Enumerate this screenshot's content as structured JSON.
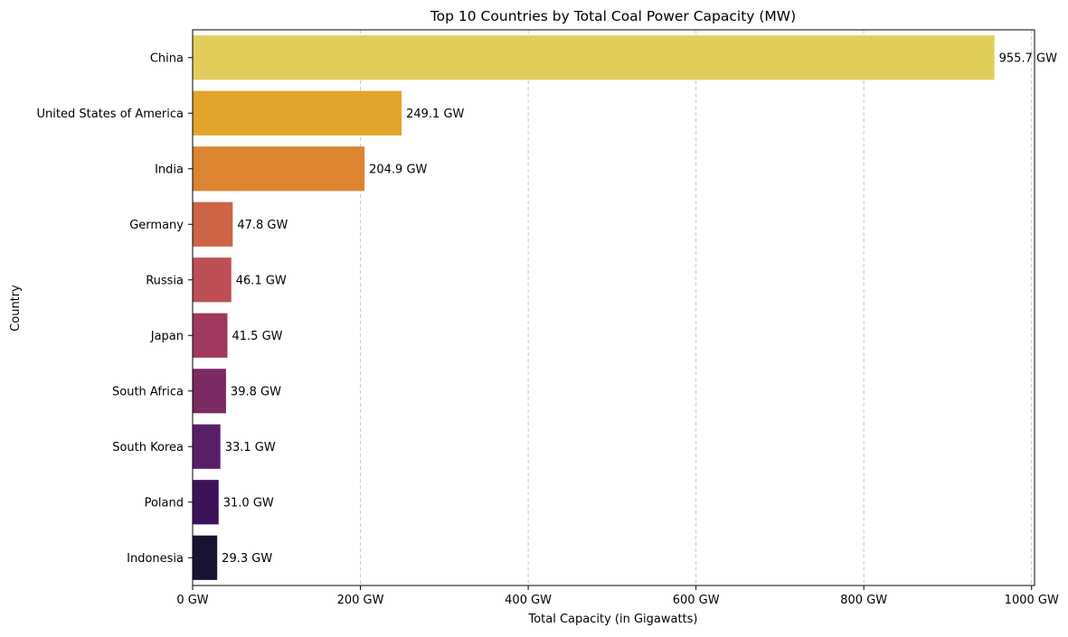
{
  "chart_data": {
    "type": "bar",
    "orientation": "horizontal",
    "title": "Top 10 Countries by Total Coal Power Capacity (MW)",
    "xlabel": "Total Capacity (in Gigawatts)",
    "ylabel": "Country",
    "xlim": [
      0,
      1003.5
    ],
    "x_ticks": [
      0,
      200,
      400,
      600,
      800,
      1000
    ],
    "x_tick_labels": [
      "0 GW",
      "200 GW",
      "400 GW",
      "600 GW",
      "800 GW",
      "1000 GW"
    ],
    "grid": "x-dashed",
    "categories": [
      "China",
      "United States of America",
      "India",
      "Germany",
      "Russia",
      "Japan",
      "South Africa",
      "South Korea",
      "Poland",
      "Indonesia"
    ],
    "values": [
      955.7,
      249.1,
      204.9,
      47.8,
      46.1,
      41.5,
      39.8,
      33.1,
      31.0,
      29.3
    ],
    "data_labels": [
      "955.7 GW",
      "249.1 GW",
      "204.9 GW",
      "47.8 GW",
      "46.1 GW",
      "41.5 GW",
      "39.8 GW",
      "33.1 GW",
      "31.0 GW",
      "29.3 GW"
    ],
    "colors": [
      "#e2cd5b",
      "#e3a42c",
      "#dd8430",
      "#cc6445",
      "#bd4f55",
      "#9f3960",
      "#7b2a63",
      "#581f67",
      "#3c1358",
      "#1a1232"
    ]
  }
}
